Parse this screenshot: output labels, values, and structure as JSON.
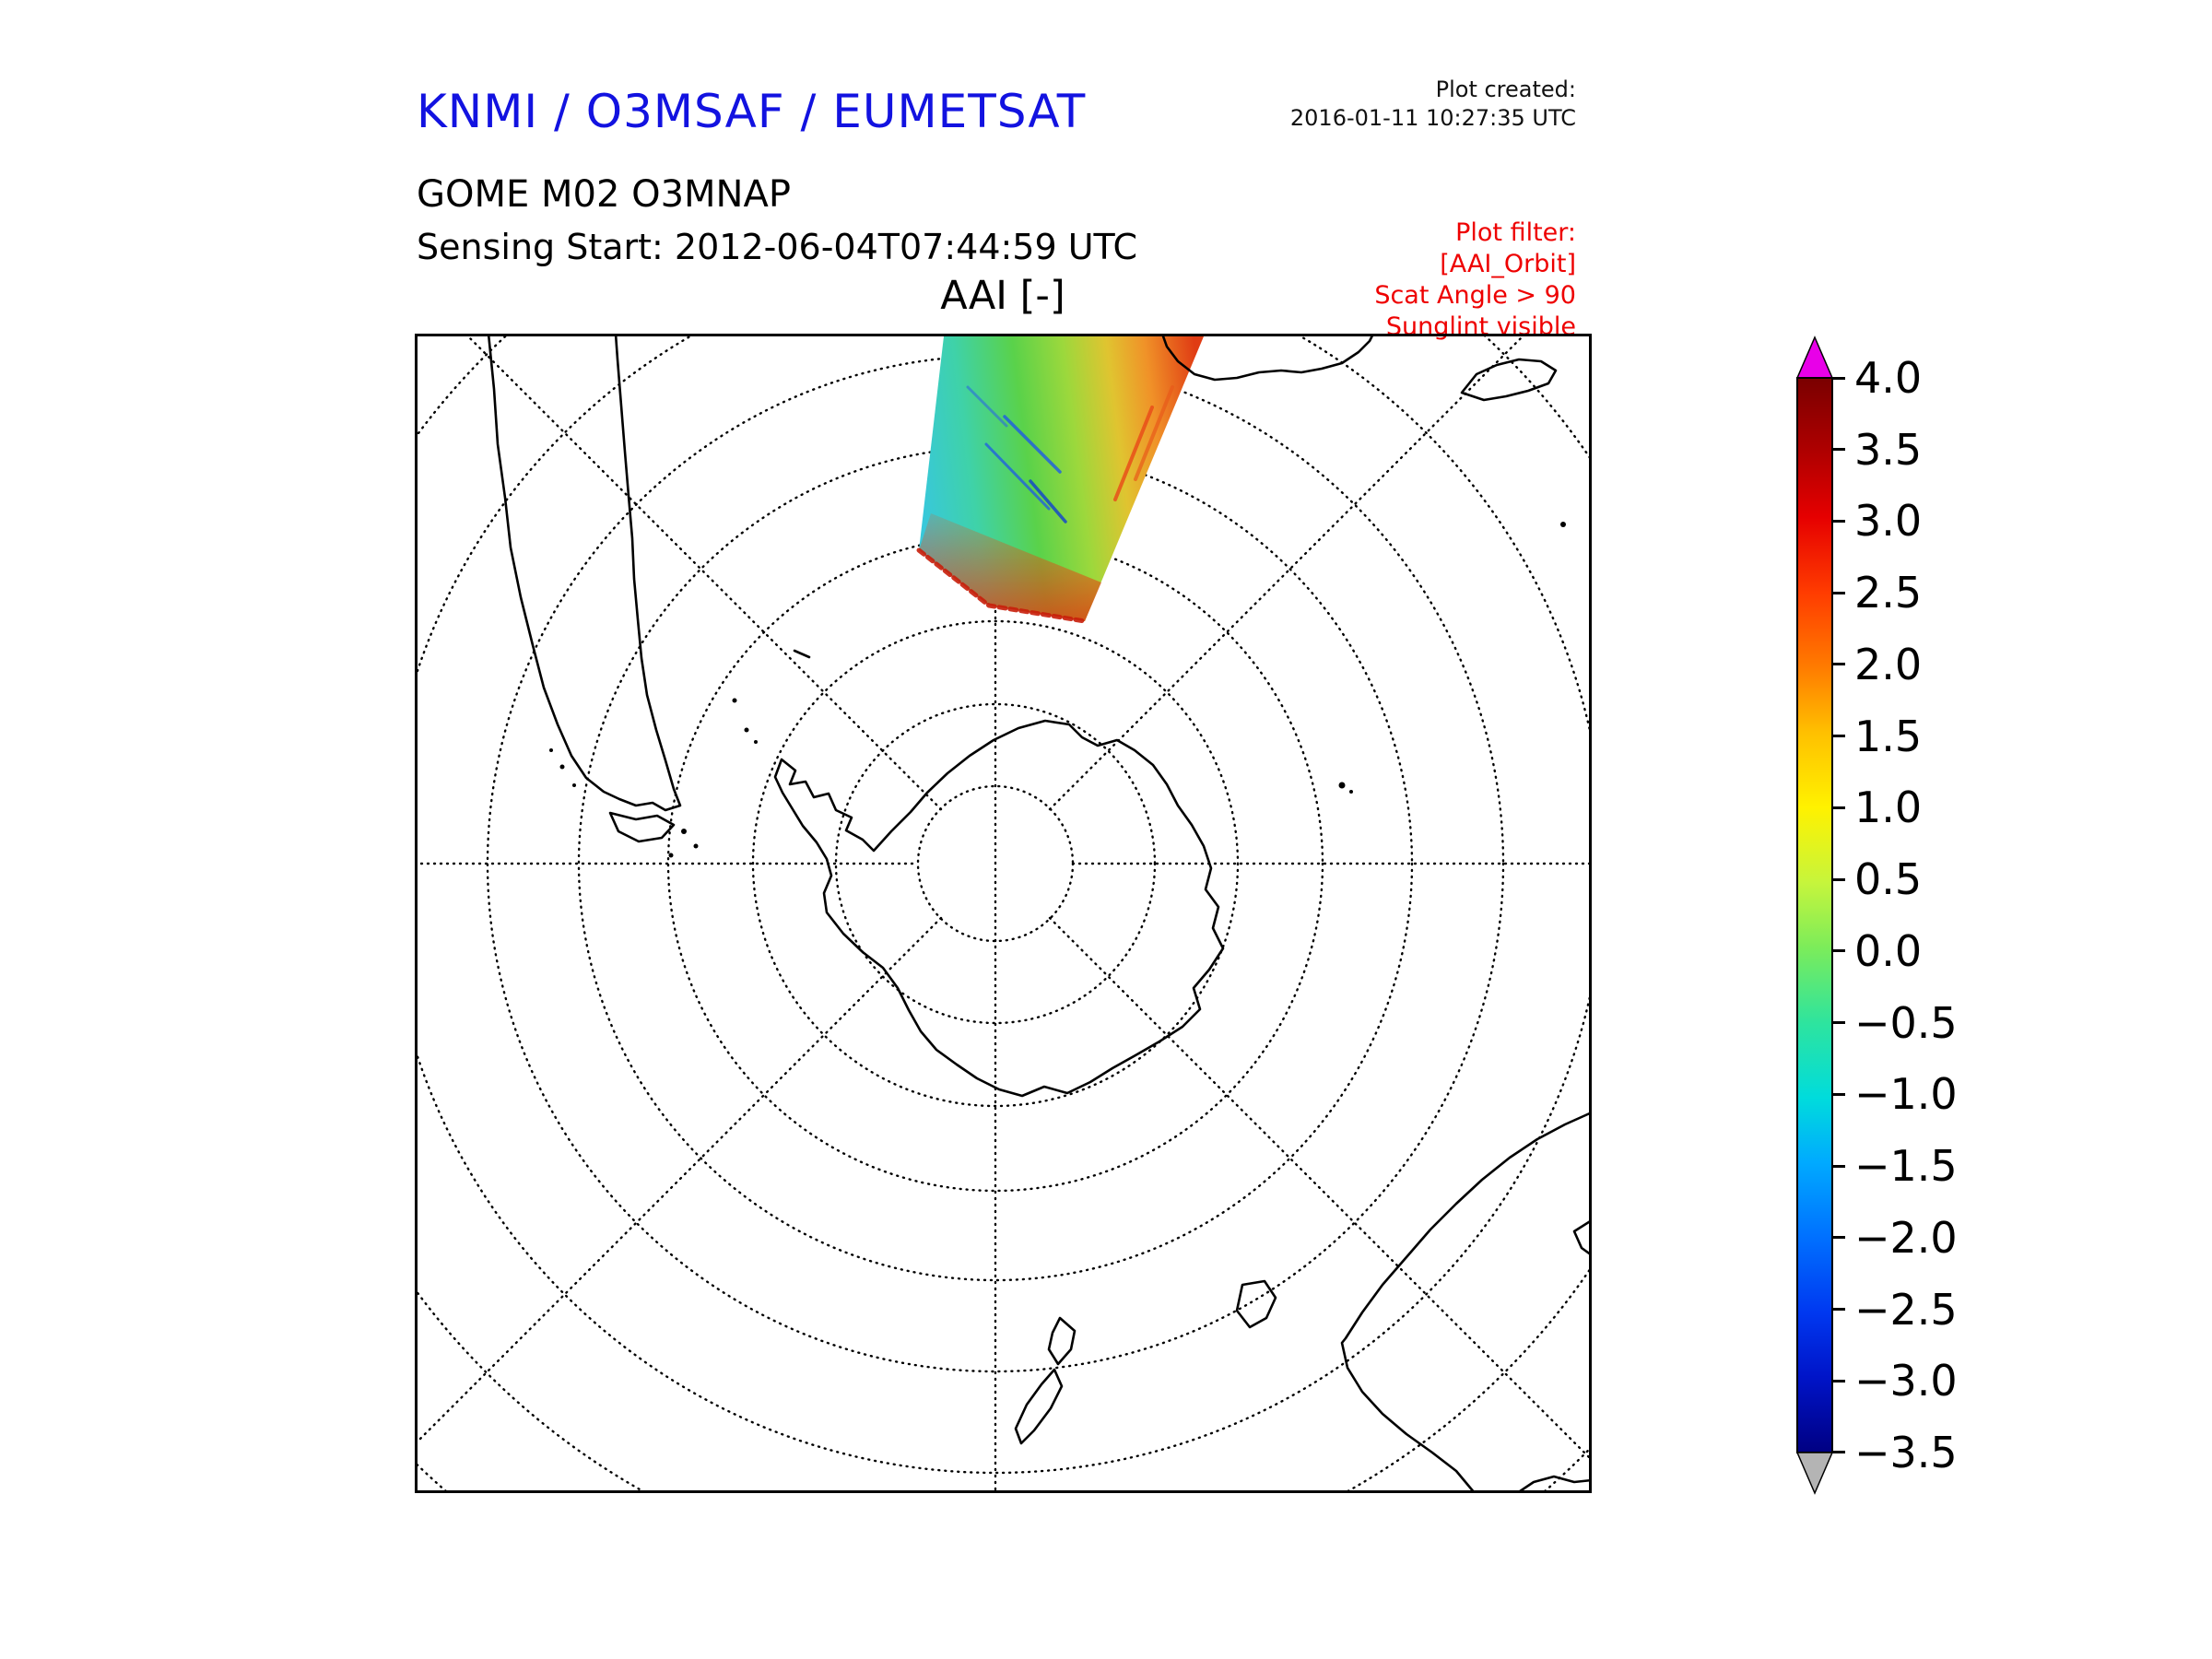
{
  "header": {
    "title": "KNMI / O3MSAF / EUMETSAT",
    "title_color": "#1212e0",
    "product": "GOME M02 O3MNAP",
    "sensing_start": "Sensing Start: 2012-06-04T07:44:59 UTC",
    "plot_created_label": "Plot created:",
    "plot_created_timestamp": "2016-01-11 10:27:35 UTC"
  },
  "plot_filter": {
    "color": "#ee0000",
    "lines": [
      "Plot filter:",
      "[AAI_Orbit]",
      "Scat Angle > 90",
      "Sunglint visible"
    ]
  },
  "map_title": "AAI [-]",
  "chart_data": {
    "type": "heatmap",
    "title": "AAI [-]",
    "projection": "South polar stereographic map centered on the South Pole; dotted graticule with latitude circles every 10 degrees and meridians every 45 degrees; Antarctica at centre, tip of South America upper left, southern Africa and Madagascar upper right, Australia / Tasmania / New Zealand lower right",
    "grid": "dotted black graticule, solid black square frame",
    "swath": {
      "description": "Single GOME-2 (MetOp) orbit swath of Absorbing Aerosol Index crossing the top-centre of the map, tilted clockwise",
      "west_side_color": "#38c8da",
      "centre_color": "#5ad24a",
      "east_edge_color": "#e03c14",
      "approx_aai_range_visible": "-1.5 (cyan) to 3.0 (red)"
    },
    "colorbar": {
      "label": "AAI [-]",
      "min": -3.5,
      "max": 4.0,
      "tick_step": 0.5,
      "position": "right",
      "tick_labels": [
        "4.0",
        "3.5",
        "3.0",
        "2.5",
        "2.0",
        "1.5",
        "1.0",
        "0.5",
        "0.0",
        "−0.5",
        "−1.0",
        "−1.5",
        "−2.0",
        "−2.5",
        "−3.0",
        "−3.5"
      ],
      "over_arrow_color": "#e800e8",
      "under_arrow_color": "#b4b4b4",
      "gradient": [
        {
          "offset": "0%",
          "color": "#7a0000"
        },
        {
          "offset": "7%",
          "color": "#b00000"
        },
        {
          "offset": "13%",
          "color": "#e60000"
        },
        {
          "offset": "20%",
          "color": "#ff3c00"
        },
        {
          "offset": "27%",
          "color": "#ff7c00"
        },
        {
          "offset": "33%",
          "color": "#ffc000"
        },
        {
          "offset": "40%",
          "color": "#fff200"
        },
        {
          "offset": "47%",
          "color": "#c6f53c"
        },
        {
          "offset": "53%",
          "color": "#7cec5a"
        },
        {
          "offset": "60%",
          "color": "#2ee49e"
        },
        {
          "offset": "67%",
          "color": "#00dcdc"
        },
        {
          "offset": "73%",
          "color": "#00aaff"
        },
        {
          "offset": "80%",
          "color": "#0070ff"
        },
        {
          "offset": "87%",
          "color": "#0038f0"
        },
        {
          "offset": "93%",
          "color": "#0014c8"
        },
        {
          "offset": "100%",
          "color": "#000082"
        }
      ]
    }
  }
}
